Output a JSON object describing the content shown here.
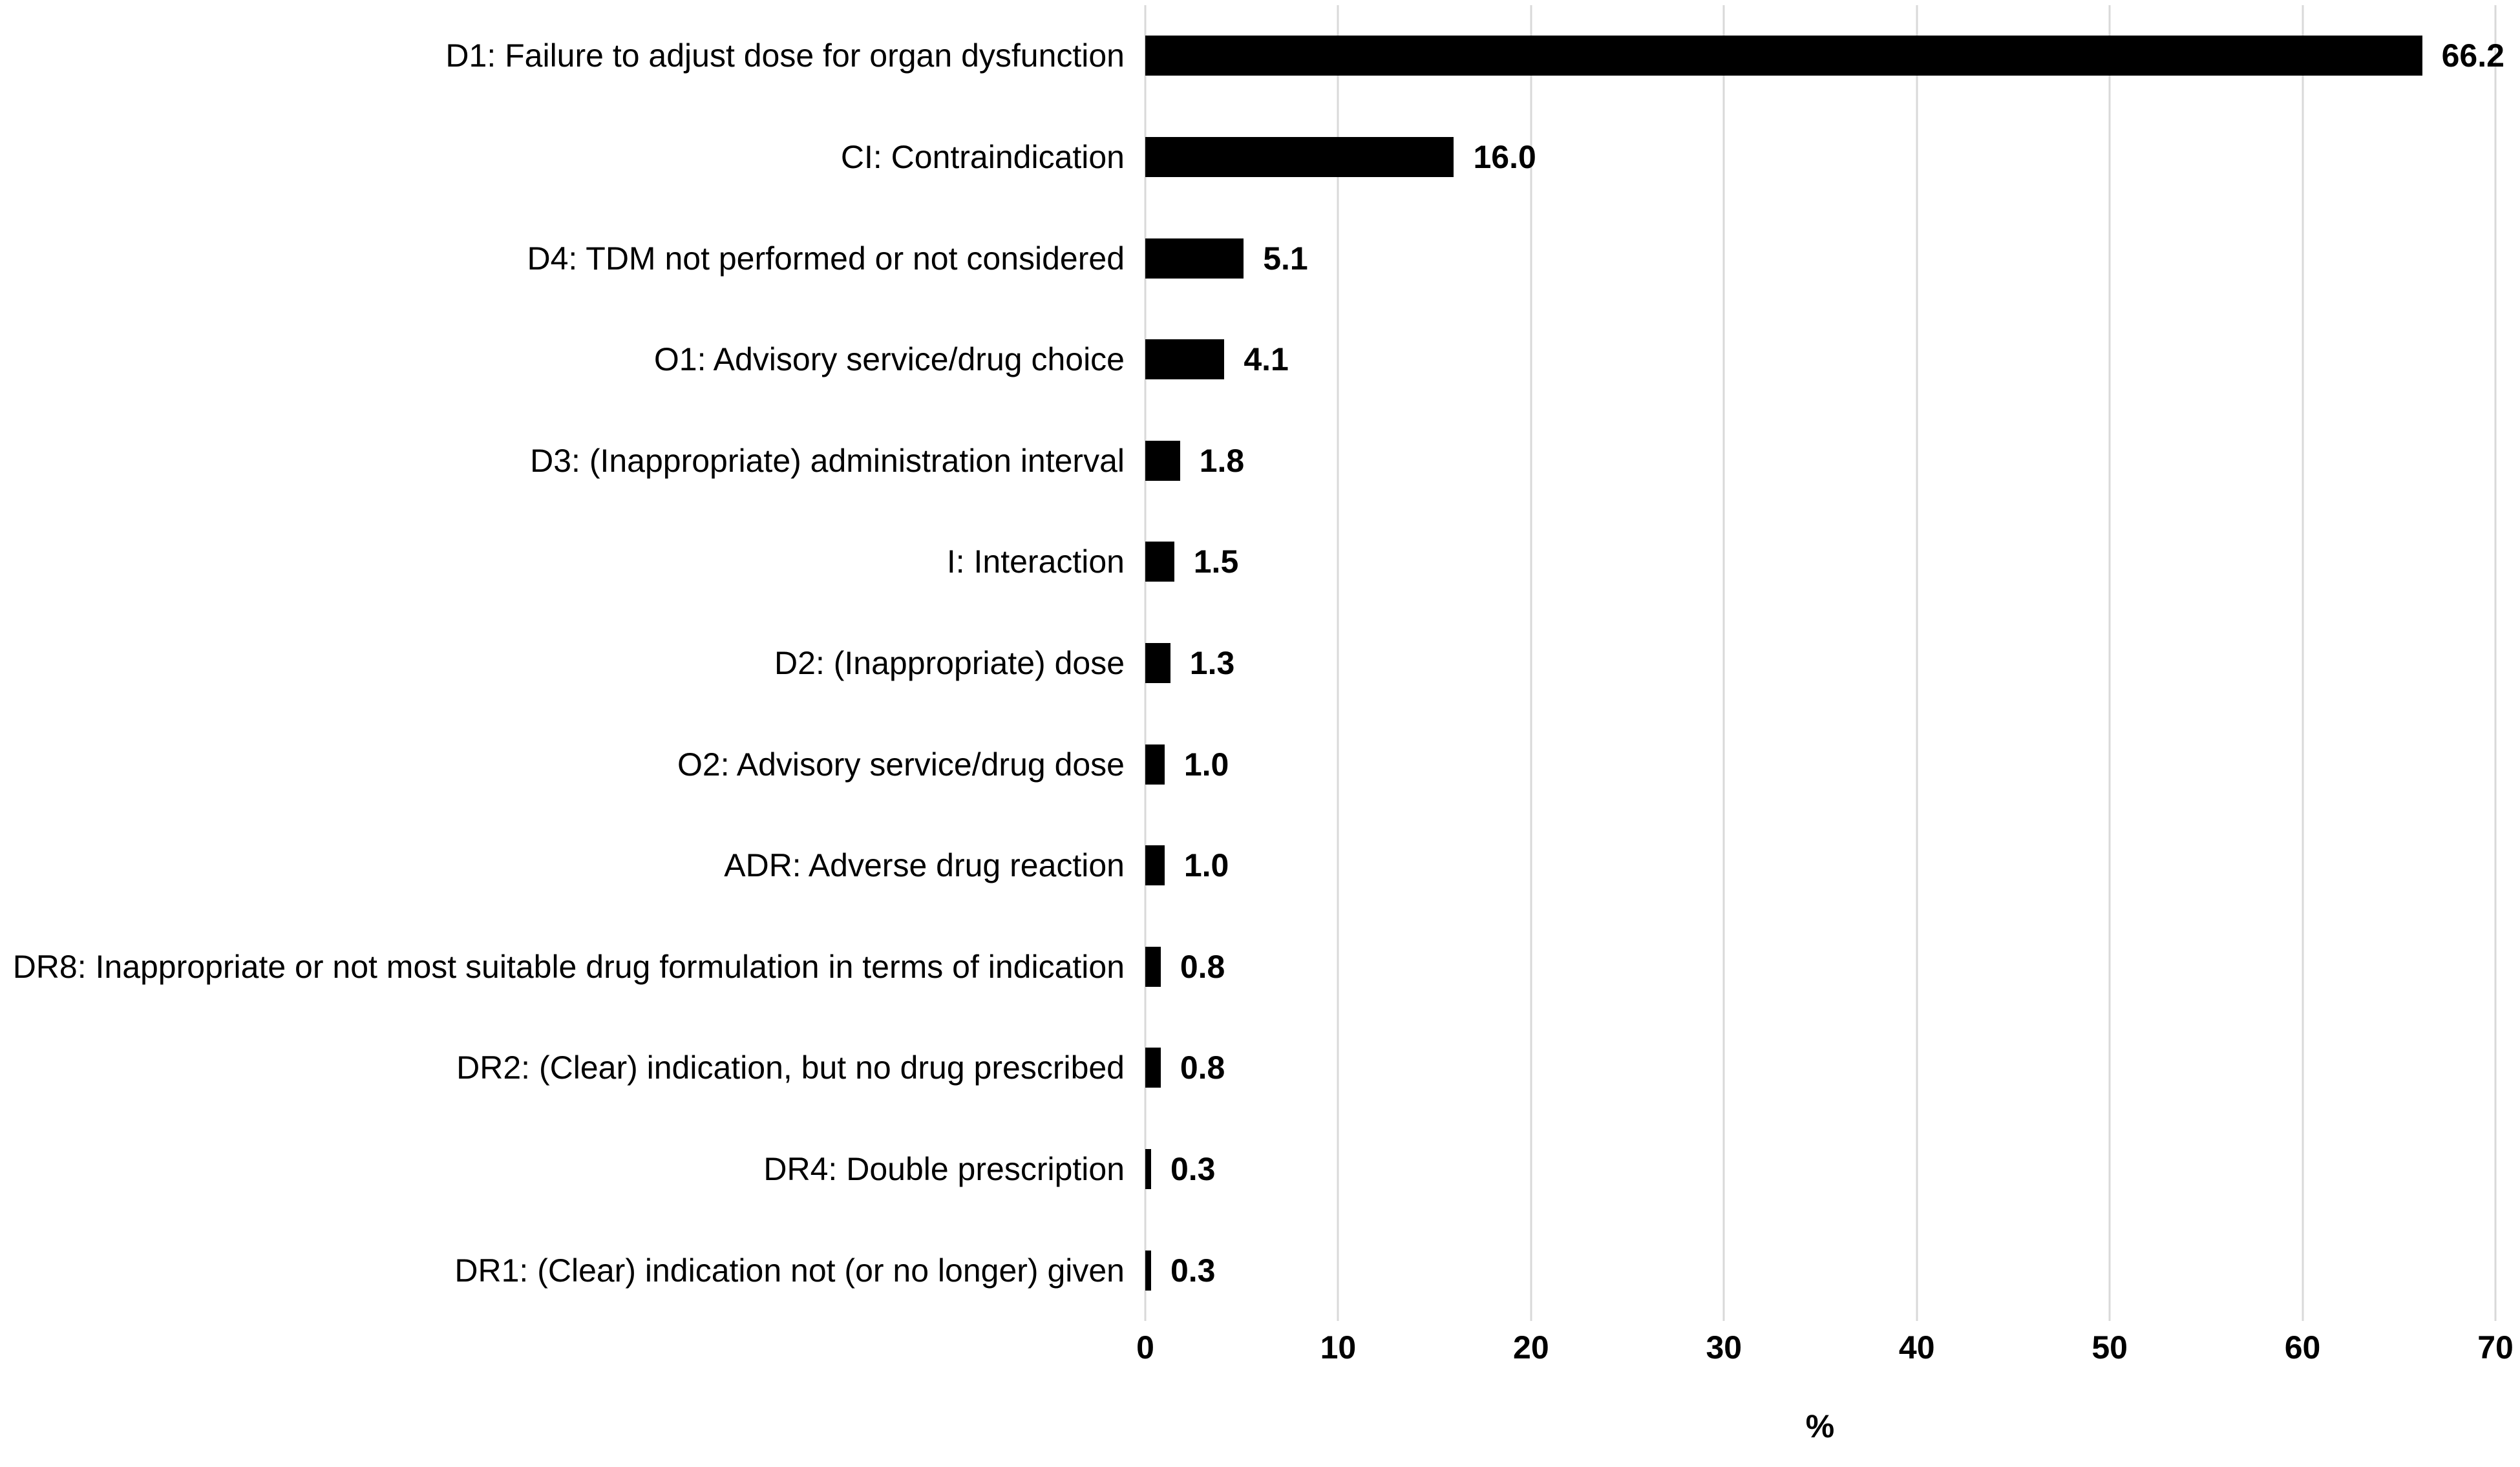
{
  "chart_data": {
    "type": "bar",
    "orientation": "horizontal",
    "title": "",
    "xlabel": "%",
    "ylabel": "",
    "xlim": [
      0,
      70
    ],
    "x_ticks": [
      0,
      10,
      20,
      30,
      40,
      50,
      60,
      70
    ],
    "grid": "vertical-only",
    "legend": "none",
    "categories": [
      "D1: Failure to adjust dose for organ dysfunction",
      "CI: Contraindication",
      "D4: TDM not performed or not considered",
      "O1: Advisory service/drug choice",
      "D3: (Inappropriate) administration interval",
      "I: Interaction",
      "D2: (Inappropriate) dose",
      "O2: Advisory service/drug dose",
      "ADR: Adverse drug reaction",
      "DR8: Inappropriate or not most suitable drug formulation in terms of indication",
      "DR2: (Clear) indication, but no drug prescribed",
      "DR4: Double prescription",
      "DR1: (Clear) indication not (or no longer) given"
    ],
    "values": [
      66.2,
      16.0,
      5.1,
      4.1,
      1.8,
      1.5,
      1.3,
      1.0,
      1.0,
      0.8,
      0.8,
      0.3,
      0.3
    ],
    "value_labels": [
      "66.2",
      "16.0",
      "5.1",
      "4.1",
      "1.8",
      "1.5",
      "1.3",
      "1.0",
      "1.0",
      "0.8",
      "0.8",
      "0.3",
      "0.3"
    ],
    "colors": {
      "bar": "#000000",
      "gridline": "#d9d9d9",
      "text": "#000000",
      "background": "#ffffff"
    }
  }
}
